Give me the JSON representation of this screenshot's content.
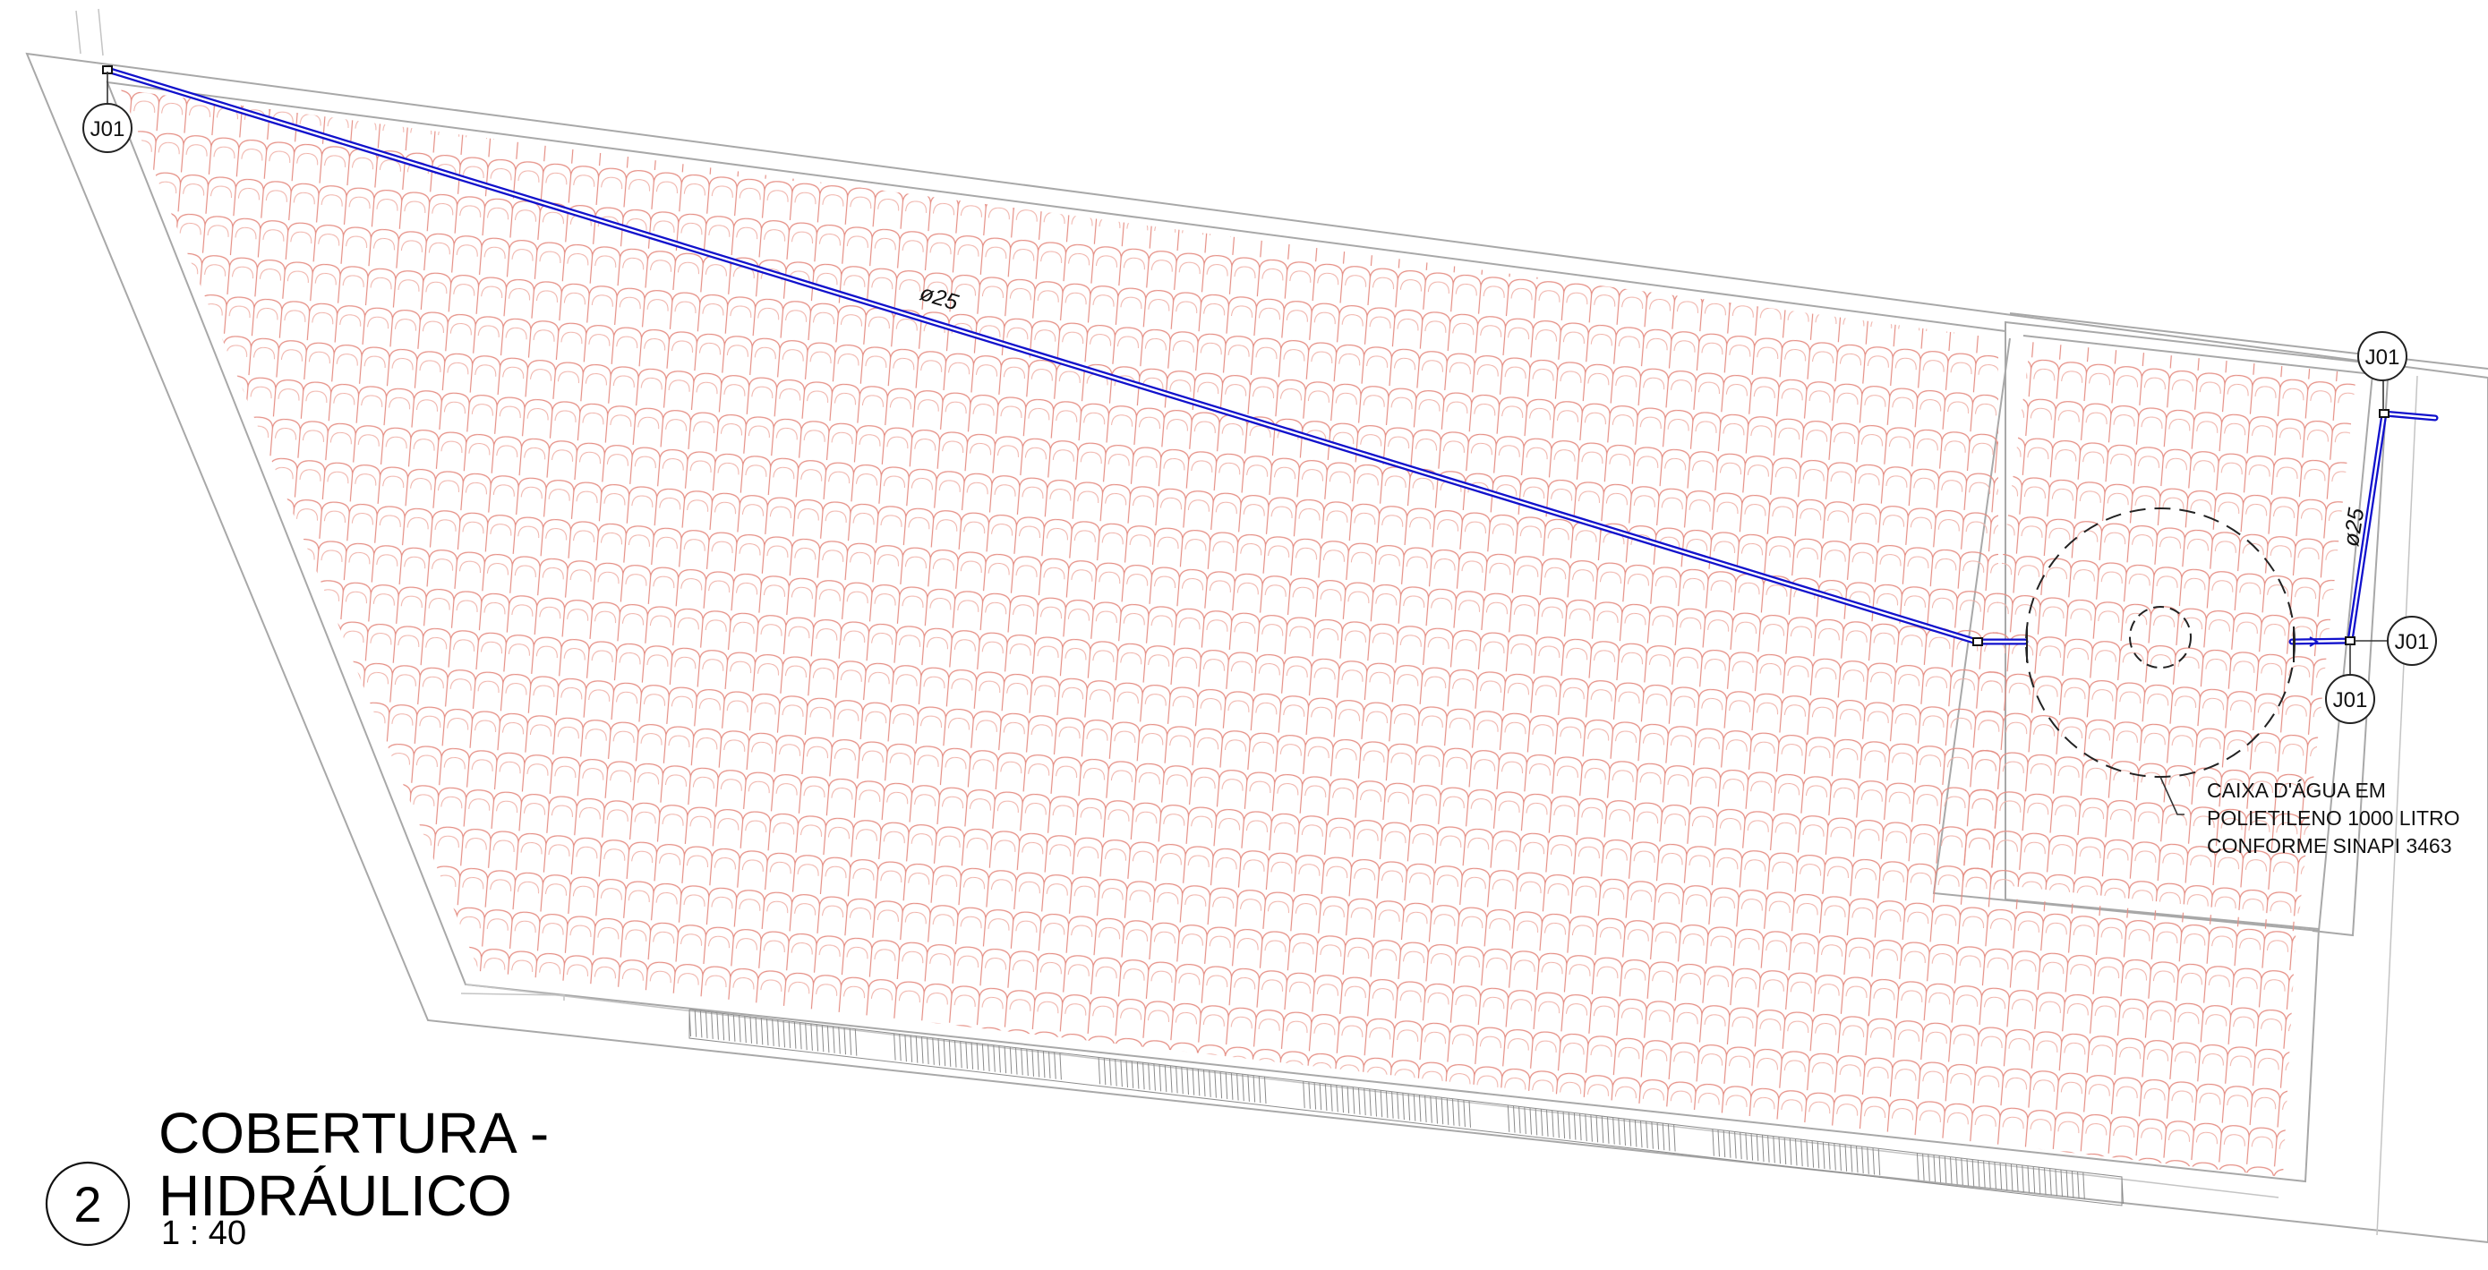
{
  "view": {
    "number": "2",
    "title_line1": "COBERTURA -",
    "title_line2": "HIDRÁULICO",
    "scale": "1 : 40"
  },
  "pipes": {
    "diameter_label": "ø25",
    "color": "#1111cc"
  },
  "tags": [
    {
      "id": "tag-left",
      "text": "J01"
    },
    {
      "id": "tag-top-right",
      "text": "J01"
    },
    {
      "id": "tag-right",
      "text": "J01"
    },
    {
      "id": "tag-bottom-right",
      "text": "J01"
    }
  ],
  "tank_note": {
    "line1": "CAIXA D'ÁGUA EM",
    "line2": "POLIETILENO 1000 LITRO",
    "line3": "CONFORME SINAPI 3463"
  },
  "colors": {
    "roof_tiles": "#e58f85",
    "building_outline": "#a8a8a8",
    "pipe": "#1111cc"
  }
}
